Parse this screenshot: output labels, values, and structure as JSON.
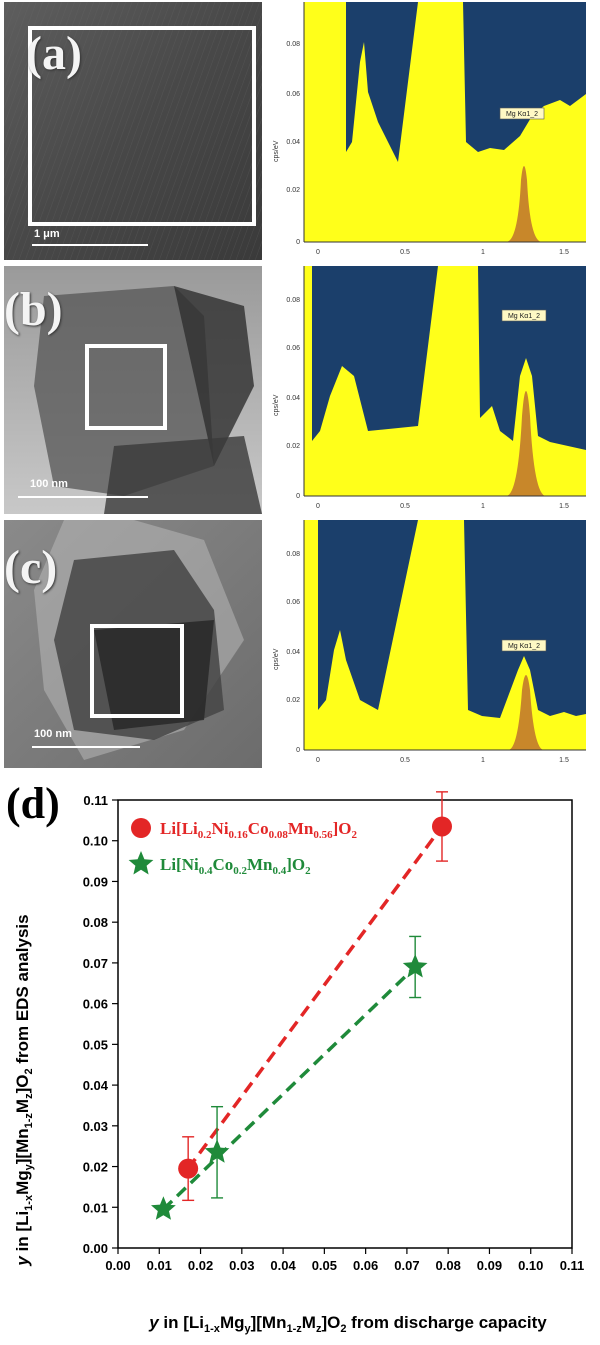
{
  "panels": [
    {
      "label": "(a)",
      "scale_label": "1 μm",
      "peak_label": "Mg Kα1_2",
      "y_axis_label": "cps/eV",
      "y_ticks": [
        "0",
        "0.02",
        "0.04",
        "0.06",
        "0.08"
      ],
      "x_ticks": [
        "0",
        "0.5",
        "1",
        "1.5"
      ]
    },
    {
      "label": "(b)",
      "scale_label": "100 nm",
      "peak_label": "Mg Kα1_2",
      "y_axis_label": "cps/eV",
      "y_ticks": [
        "0",
        "0.02",
        "0.04",
        "0.06",
        "0.08"
      ],
      "x_ticks": [
        "0",
        "0.5",
        "1",
        "1.5"
      ]
    },
    {
      "label": "(c)",
      "scale_label": "100 nm",
      "peak_label": "Mg Kα1_2",
      "y_axis_label": "cps/eV",
      "y_ticks": [
        "0",
        "0.02",
        "0.04",
        "0.06",
        "0.08"
      ],
      "x_ticks": [
        "0",
        "0.5",
        "1",
        "1.5"
      ]
    }
  ],
  "chart_data": {
    "type": "scatter",
    "panel_label": "(d)",
    "xlabel": {
      "italic": "y",
      "pre": " in [Li",
      "sub1": "1-x",
      "mid1": "Mg",
      "sub2": "y",
      "mid2": "][Mn",
      "sub3": "1-z",
      "mid3": "M",
      "sub4": "z",
      "mid4": "]O",
      "sub5": "2",
      "post": " from discharge capacity"
    },
    "ylabel": {
      "italic": "y",
      "pre": " in [Li",
      "sub1": "1-x",
      "mid1": "Mg",
      "sub2": "y",
      "mid2": "][Mn",
      "sub3": "1-z",
      "mid3": "M",
      "sub4": "z",
      "mid4": "]O",
      "sub5": "2",
      "post": " from EDS analysis"
    },
    "xlim": [
      0.0,
      0.11
    ],
    "ylim": [
      0.0,
      0.11
    ],
    "x_ticks": [
      "0.00",
      "0.01",
      "0.02",
      "0.03",
      "0.04",
      "0.05",
      "0.06",
      "0.07",
      "0.08",
      "0.09",
      "0.10",
      "0.11"
    ],
    "y_ticks": [
      "0.00",
      "0.01",
      "0.02",
      "0.03",
      "0.04",
      "0.05",
      "0.06",
      "0.07",
      "0.08",
      "0.09",
      "0.10",
      "0.11"
    ],
    "legend_position": "top-left",
    "series": [
      {
        "name": {
          "parts": [
            "Li[Li",
            "0.2",
            "Ni",
            "0.16",
            "Co",
            "0.08",
            "Mn",
            "0.56",
            "]O",
            "2"
          ]
        },
        "color": "#e32626",
        "marker": "circle",
        "points": [
          {
            "x": 0.017,
            "y": 0.0195,
            "err": 0.0078
          },
          {
            "x": 0.0785,
            "y": 0.1035,
            "err": 0.0085
          }
        ]
      },
      {
        "name": {
          "parts": [
            "Li[Ni",
            "0.4",
            "Co",
            "0.2",
            "Mn",
            "0.4",
            "]O",
            "2"
          ]
        },
        "color": "#1f8a3a",
        "marker": "star",
        "points": [
          {
            "x": 0.011,
            "y": 0.0095,
            "err": 0.0
          },
          {
            "x": 0.024,
            "y": 0.0235,
            "err": 0.0112
          },
          {
            "x": 0.072,
            "y": 0.069,
            "err": 0.0075
          }
        ]
      }
    ]
  }
}
